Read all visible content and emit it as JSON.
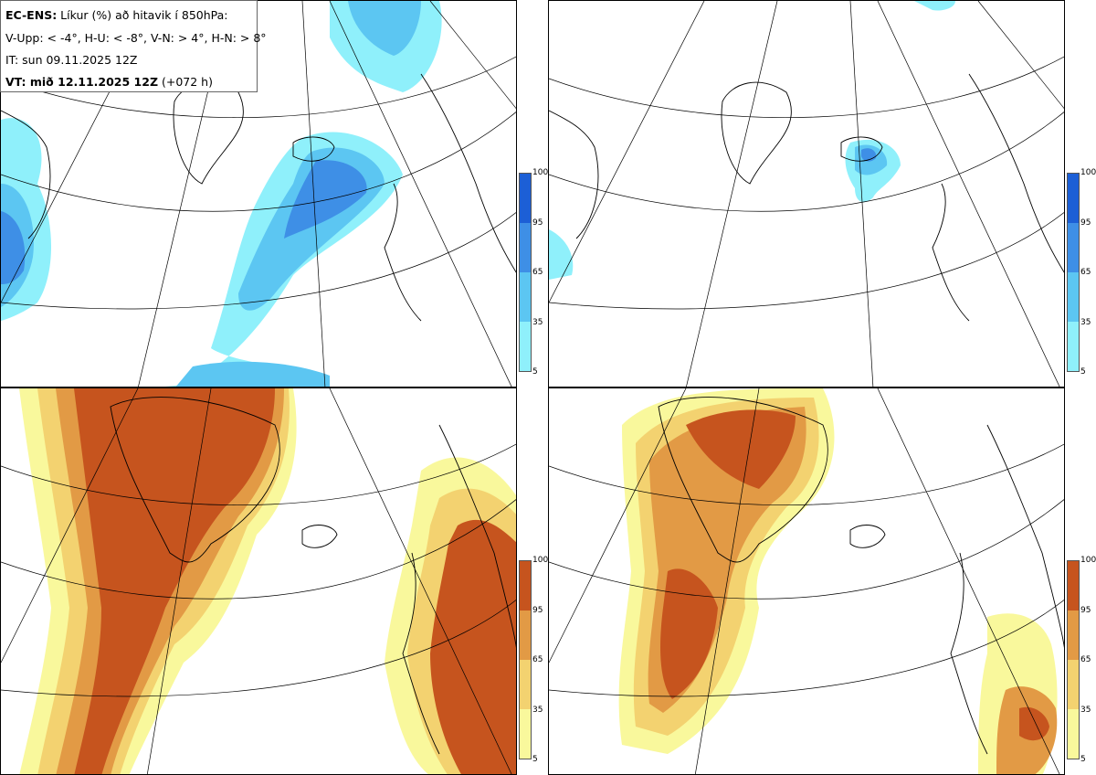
{
  "legend": {
    "line1_bold": "EC-ENS:",
    "line1_rest": " Líkur (%) að hitavik í 850hPa:",
    "line2": "V-Upp: < -4°, H-U: < -8°, V-N: > 4°, H-N: > 8°",
    "line3": "IT: sun 09.11.2025 12Z",
    "line4_bold": "VT: mið 12.11.2025 12Z",
    "line4_rest": " (+072 h)"
  },
  "panels": [
    {
      "id": "V-Upp",
      "variable": "probability of 850hPa temperature anomaly < -4°",
      "palette": "blue",
      "region": "northwest: Greenland, Iceland (high), central North Atlantic, Labrador Sea"
    },
    {
      "id": "H-U",
      "variable": "probability of 850hPa temperature anomaly < -8°",
      "palette": "blue",
      "region": "Iceland small area, Labrador small area"
    },
    {
      "id": "V-N",
      "variable": "probability of 850hPa temperature anomaly > 4°",
      "palette": "brown",
      "region": "west: Greenland, western Atlantic; east: Scandinavia, western Europe"
    },
    {
      "id": "H-N",
      "variable": "probability of 850hPa temperature anomaly > 8°",
      "palette": "brown",
      "region": "Greenland and west Atlantic; small area southern Europe"
    }
  ],
  "colorbar": {
    "ticks": [
      "100",
      "95",
      "65",
      "35",
      "5"
    ],
    "blue_colors": [
      "#1c5fd6",
      "#3e8fe6",
      "#5cc6f2",
      "#8ff0fb"
    ],
    "brown_colors": [
      "#c6541e",
      "#e29a45",
      "#f3d270",
      "#f9f89c"
    ]
  }
}
